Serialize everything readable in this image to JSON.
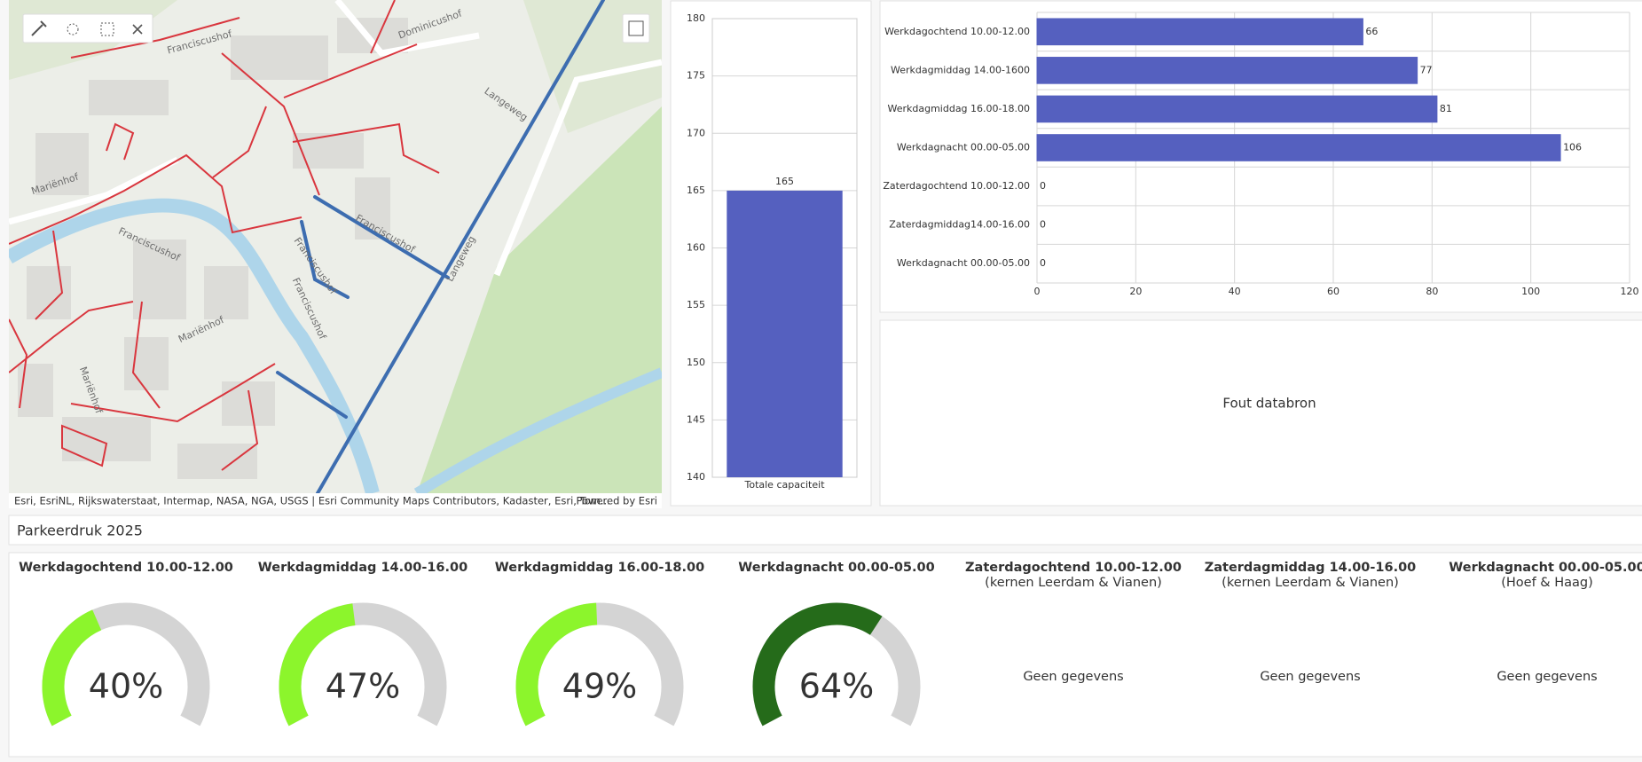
{
  "map": {
    "street_labels": [
      "Franciscushof",
      "Dominicushof",
      "Langeweg",
      "Mariënhof",
      "Franciscushof",
      "Franciscushof",
      "Franciscushof",
      "Mariënhof",
      "Mariënhof",
      "Langeweg",
      "Franciscushof"
    ],
    "attribution": "Esri, EsriNL, Rijkswaterstaat, Intermap, NASA, NGA, USGS | Esri Community Maps Contributors, Kadaster, Esri, Tom...",
    "powered_by": "Powered by Esri"
  },
  "chart_data": [
    {
      "type": "bar",
      "categories": [
        "Totale capaciteit"
      ],
      "values": [
        165
      ],
      "color": "#5560bf",
      "ylim": [
        140,
        180
      ],
      "yticks": [
        140,
        145,
        150,
        155,
        160,
        165,
        170,
        175,
        180
      ],
      "grid": true,
      "data_labels": true
    },
    {
      "type": "bar",
      "horizontal": true,
      "categories": [
        "Werkdagochtend 10.00-12.00",
        "Werkdagmiddag 14.00-1600",
        "Werkdagmiddag 16.00-18.00",
        "Werkdagnacht 00.00-05.00",
        "Zaterdagochtend 10.00-12.00",
        "Zaterdagmiddag14.00-16.00",
        "Werkdagnacht 00.00-05.00"
      ],
      "values": [
        66,
        77,
        81,
        106,
        0,
        0,
        0
      ],
      "color": "#5560bf",
      "xlim": [
        0,
        120
      ],
      "xticks": [
        0,
        20,
        40,
        60,
        80,
        100,
        120
      ],
      "grid": true,
      "data_labels": true
    },
    {
      "type": "gauge",
      "title": "Werkdagochtend 10.00-12.00",
      "value": 40,
      "value_label": "40%",
      "ylim": [
        0,
        100
      ],
      "color": "#8cf52c"
    },
    {
      "type": "gauge",
      "title": "Werkdagmiddag 14.00-16.00",
      "value": 47,
      "value_label": "47%",
      "ylim": [
        0,
        100
      ],
      "color": "#8cf52c"
    },
    {
      "type": "gauge",
      "title": "Werkdagmiddag 16.00-18.00",
      "value": 49,
      "value_label": "49%",
      "ylim": [
        0,
        100
      ],
      "color": "#8cf52c"
    },
    {
      "type": "gauge",
      "title": "Werkdagnacht 00.00-05.00",
      "value": 64,
      "value_label": "64%",
      "ylim": [
        0,
        100
      ],
      "color": "#256b1a"
    },
    {
      "type": "gauge",
      "title": "Zaterdagochtend 10.00-12.00",
      "subtitle": "(kernen Leerdam & Vianen)",
      "message": "Geen gegevens"
    },
    {
      "type": "gauge",
      "title": "Zaterdagmiddag 14.00-16.00",
      "subtitle": "(kernen Leerdam & Vianen)",
      "message": "Geen gegevens"
    },
    {
      "type": "gauge",
      "title": "Werkdagnacht 00.00-05.00",
      "subtitle": "(Hoef & Haag)",
      "message": "Geen gegevens"
    }
  ],
  "error_panel": {
    "message": "Fout databron"
  },
  "section_title": "Parkeerdruk 2025"
}
